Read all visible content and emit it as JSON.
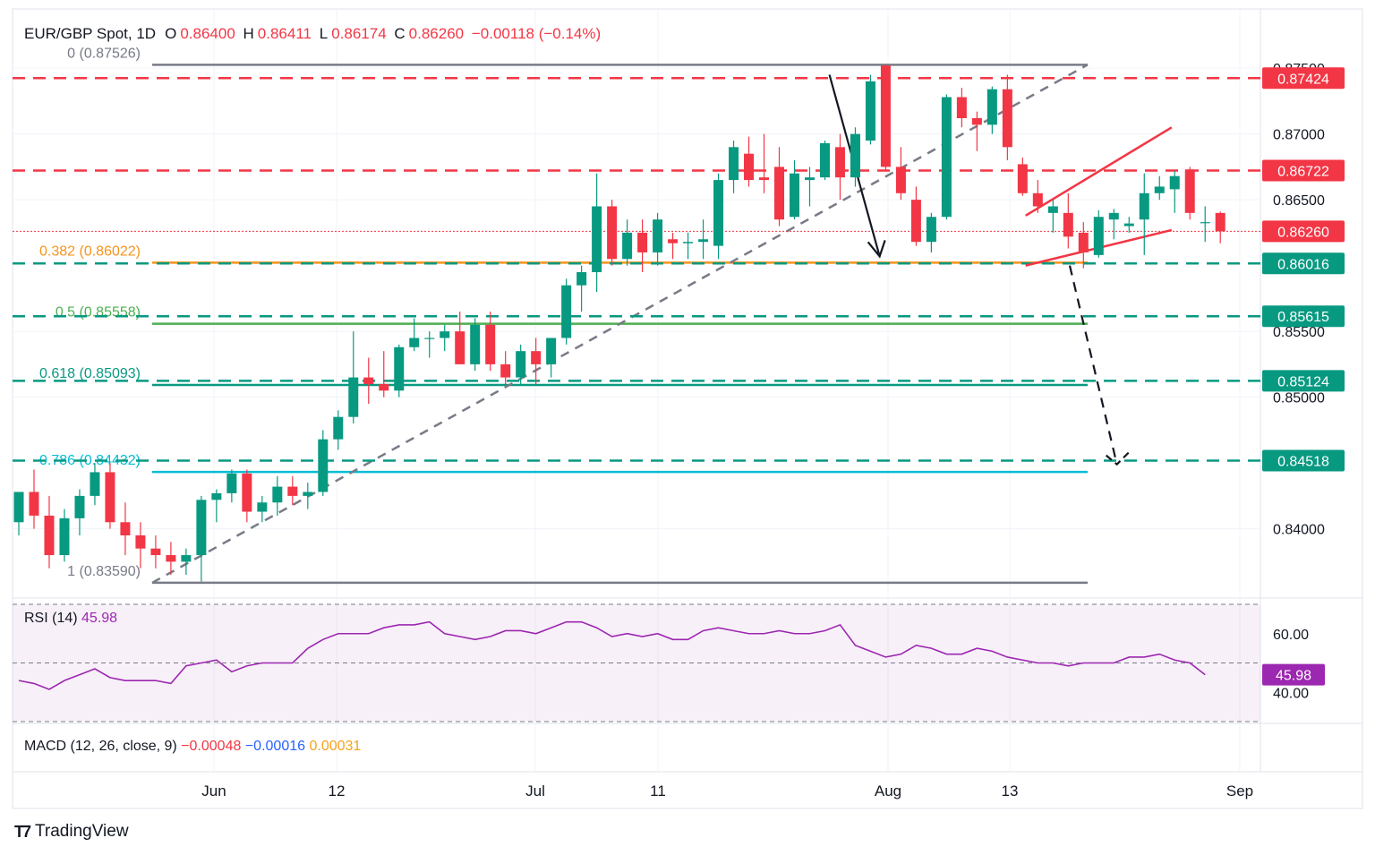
{
  "header": {
    "symbol": "EUR/GBP Spot, 1D",
    "open_label": "O",
    "open": "0.86400",
    "high_label": "H",
    "high": "0.86411",
    "low_label": "L",
    "low": "0.86174",
    "close_label": "C",
    "close": "0.86260",
    "change": "−0.00118 (−0.14%)"
  },
  "rsi": {
    "title": "RSI (14)",
    "value": "45.98",
    "ticks": [
      "60.00",
      "40.00"
    ],
    "tag": "45.98"
  },
  "macd": {
    "title": "MACD (12, 26, close, 9)",
    "v1": "−0.00048",
    "v2": "−0.00016",
    "v3": "0.00031"
  },
  "branding": {
    "name": "TradingView",
    "logo_icon": "tradingview-logo-icon"
  },
  "colors": {
    "up": "#089981",
    "down": "#f23645",
    "fib_orange": "#f7931a",
    "fib_green": "#4caf50",
    "fib_teal": "#089981",
    "fib_cyan": "#00bcd4",
    "rsi": "#9c27b0"
  },
  "chart_data": {
    "type": "candlestick",
    "xlabel": "",
    "ylabel": "",
    "x_ticks": [
      "Jun",
      "12",
      "Jul",
      "11",
      "Aug",
      "13",
      "Sep"
    ],
    "y_ticks": [
      "0.87500",
      "0.87000",
      "0.86500",
      "0.85500",
      "0.85000",
      "0.84000"
    ],
    "ylim": [
      0.833,
      0.8765
    ],
    "grid": true,
    "candles": [
      {
        "o": 0.8405,
        "h": 0.8425,
        "l": 0.8395,
        "c": 0.8428
      },
      {
        "o": 0.8428,
        "h": 0.8445,
        "l": 0.84,
        "c": 0.841
      },
      {
        "o": 0.841,
        "h": 0.8425,
        "l": 0.837,
        "c": 0.838
      },
      {
        "o": 0.838,
        "h": 0.8415,
        "l": 0.8375,
        "c": 0.8408
      },
      {
        "o": 0.8408,
        "h": 0.843,
        "l": 0.8395,
        "c": 0.8425
      },
      {
        "o": 0.8425,
        "h": 0.845,
        "l": 0.8418,
        "c": 0.8443
      },
      {
        "o": 0.8443,
        "h": 0.845,
        "l": 0.84,
        "c": 0.8405
      },
      {
        "o": 0.8405,
        "h": 0.842,
        "l": 0.838,
        "c": 0.8395
      },
      {
        "o": 0.8395,
        "h": 0.8405,
        "l": 0.837,
        "c": 0.8385
      },
      {
        "o": 0.8385,
        "h": 0.8395,
        "l": 0.837,
        "c": 0.838
      },
      {
        "o": 0.838,
        "h": 0.839,
        "l": 0.8365,
        "c": 0.8375
      },
      {
        "o": 0.8375,
        "h": 0.8385,
        "l": 0.8365,
        "c": 0.838
      },
      {
        "o": 0.838,
        "h": 0.8425,
        "l": 0.836,
        "c": 0.8422
      },
      {
        "o": 0.8422,
        "h": 0.843,
        "l": 0.8405,
        "c": 0.8427
      },
      {
        "o": 0.8427,
        "h": 0.8445,
        "l": 0.842,
        "c": 0.8442
      },
      {
        "o": 0.8442,
        "h": 0.8445,
        "l": 0.8405,
        "c": 0.8413
      },
      {
        "o": 0.8413,
        "h": 0.8425,
        "l": 0.8405,
        "c": 0.842
      },
      {
        "o": 0.842,
        "h": 0.844,
        "l": 0.841,
        "c": 0.8432
      },
      {
        "o": 0.8432,
        "h": 0.844,
        "l": 0.8418,
        "c": 0.8425
      },
      {
        "o": 0.8425,
        "h": 0.8435,
        "l": 0.8415,
        "c": 0.8428
      },
      {
        "o": 0.8428,
        "h": 0.8475,
        "l": 0.8425,
        "c": 0.8468
      },
      {
        "o": 0.8468,
        "h": 0.849,
        "l": 0.846,
        "c": 0.8485
      },
      {
        "o": 0.8485,
        "h": 0.855,
        "l": 0.848,
        "c": 0.8515
      },
      {
        "o": 0.8515,
        "h": 0.853,
        "l": 0.8495,
        "c": 0.851
      },
      {
        "o": 0.851,
        "h": 0.8535,
        "l": 0.85,
        "c": 0.8505
      },
      {
        "o": 0.8505,
        "h": 0.854,
        "l": 0.85,
        "c": 0.8538
      },
      {
        "o": 0.8538,
        "h": 0.856,
        "l": 0.8535,
        "c": 0.8545
      },
      {
        "o": 0.8545,
        "h": 0.855,
        "l": 0.853,
        "c": 0.8545
      },
      {
        "o": 0.8545,
        "h": 0.8555,
        "l": 0.8535,
        "c": 0.855
      },
      {
        "o": 0.855,
        "h": 0.8565,
        "l": 0.8525,
        "c": 0.8525
      },
      {
        "o": 0.8525,
        "h": 0.856,
        "l": 0.852,
        "c": 0.8555
      },
      {
        "o": 0.8555,
        "h": 0.8565,
        "l": 0.852,
        "c": 0.8525
      },
      {
        "o": 0.8525,
        "h": 0.8535,
        "l": 0.851,
        "c": 0.8515
      },
      {
        "o": 0.8515,
        "h": 0.854,
        "l": 0.851,
        "c": 0.8535
      },
      {
        "o": 0.8535,
        "h": 0.8545,
        "l": 0.851,
        "c": 0.8525
      },
      {
        "o": 0.8525,
        "h": 0.8545,
        "l": 0.8515,
        "c": 0.8545
      },
      {
        "o": 0.8545,
        "h": 0.859,
        "l": 0.854,
        "c": 0.8585
      },
      {
        "o": 0.8585,
        "h": 0.86,
        "l": 0.8565,
        "c": 0.8595
      },
      {
        "o": 0.8595,
        "h": 0.867,
        "l": 0.858,
        "c": 0.8645
      },
      {
        "o": 0.8645,
        "h": 0.865,
        "l": 0.86,
        "c": 0.8605
      },
      {
        "o": 0.8605,
        "h": 0.8635,
        "l": 0.86,
        "c": 0.8625
      },
      {
        "o": 0.8625,
        "h": 0.8635,
        "l": 0.8595,
        "c": 0.861
      },
      {
        "o": 0.861,
        "h": 0.864,
        "l": 0.86,
        "c": 0.8635
      },
      {
        "o": 0.862,
        "h": 0.8625,
        "l": 0.8605,
        "c": 0.8617
      },
      {
        "o": 0.8617,
        "h": 0.8625,
        "l": 0.8605,
        "c": 0.8618
      },
      {
        "o": 0.8618,
        "h": 0.8635,
        "l": 0.8605,
        "c": 0.862
      },
      {
        "o": 0.8615,
        "h": 0.867,
        "l": 0.8605,
        "c": 0.8665
      },
      {
        "o": 0.8665,
        "h": 0.8695,
        "l": 0.8655,
        "c": 0.869
      },
      {
        "o": 0.8685,
        "h": 0.8698,
        "l": 0.866,
        "c": 0.8665
      },
      {
        "o": 0.8667,
        "h": 0.87,
        "l": 0.8655,
        "c": 0.8665
      },
      {
        "o": 0.8675,
        "h": 0.869,
        "l": 0.863,
        "c": 0.8635
      },
      {
        "o": 0.8637,
        "h": 0.868,
        "l": 0.8635,
        "c": 0.867
      },
      {
        "o": 0.8665,
        "h": 0.8675,
        "l": 0.8645,
        "c": 0.8667
      },
      {
        "o": 0.8667,
        "h": 0.8695,
        "l": 0.8665,
        "c": 0.8693
      },
      {
        "o": 0.869,
        "h": 0.87,
        "l": 0.865,
        "c": 0.8667
      },
      {
        "o": 0.8667,
        "h": 0.8705,
        "l": 0.866,
        "c": 0.87
      },
      {
        "o": 0.8695,
        "h": 0.8745,
        "l": 0.8692,
        "c": 0.874
      },
      {
        "o": 0.8752,
        "h": 0.8753,
        "l": 0.8672,
        "c": 0.8675
      },
      {
        "o": 0.8675,
        "h": 0.869,
        "l": 0.865,
        "c": 0.8655
      },
      {
        "o": 0.865,
        "h": 0.866,
        "l": 0.8615,
        "c": 0.8618
      },
      {
        "o": 0.8618,
        "h": 0.864,
        "l": 0.861,
        "c": 0.8637
      },
      {
        "o": 0.8637,
        "h": 0.873,
        "l": 0.8635,
        "c": 0.8728
      },
      {
        "o": 0.8728,
        "h": 0.8735,
        "l": 0.8705,
        "c": 0.8712
      },
      {
        "o": 0.8712,
        "h": 0.8717,
        "l": 0.8687,
        "c": 0.8707
      },
      {
        "o": 0.8707,
        "h": 0.8736,
        "l": 0.87,
        "c": 0.8734
      },
      {
        "o": 0.8734,
        "h": 0.8745,
        "l": 0.868,
        "c": 0.869
      },
      {
        "o": 0.8677,
        "h": 0.8682,
        "l": 0.8653,
        "c": 0.8655
      },
      {
        "o": 0.8655,
        "h": 0.8665,
        "l": 0.864,
        "c": 0.8645
      },
      {
        "o": 0.864,
        "h": 0.865,
        "l": 0.8625,
        "c": 0.8645
      },
      {
        "o": 0.864,
        "h": 0.8655,
        "l": 0.8613,
        "c": 0.8622
      },
      {
        "o": 0.8625,
        "h": 0.8633,
        "l": 0.8598,
        "c": 0.861
      },
      {
        "o": 0.8608,
        "h": 0.8642,
        "l": 0.8606,
        "c": 0.8637
      },
      {
        "o": 0.8635,
        "h": 0.8643,
        "l": 0.862,
        "c": 0.864
      },
      {
        "o": 0.863,
        "h": 0.8637,
        "l": 0.8625,
        "c": 0.8632
      },
      {
        "o": 0.8635,
        "h": 0.867,
        "l": 0.8608,
        "c": 0.8655
      },
      {
        "o": 0.8655,
        "h": 0.8668,
        "l": 0.865,
        "c": 0.866
      },
      {
        "o": 0.8658,
        "h": 0.8672,
        "l": 0.864,
        "c": 0.8668
      },
      {
        "o": 0.8673,
        "h": 0.8675,
        "l": 0.8635,
        "c": 0.864
      },
      {
        "o": 0.8633,
        "h": 0.8645,
        "l": 0.8618,
        "c": 0.8633
      },
      {
        "o": 0.864,
        "h": 0.8641,
        "l": 0.8617,
        "c": 0.8626
      }
    ],
    "fib_levels": [
      {
        "label": "0 (0.87526)",
        "value": 0.87526,
        "color": "#787b86"
      },
      {
        "label": "0.382 (0.86022)",
        "value": 0.86022,
        "color": "#f7931a"
      },
      {
        "label": "0.5 (0.85558)",
        "value": 0.85558,
        "color": "#4caf50"
      },
      {
        "label": "0.618 (0.85093)",
        "value": 0.85093,
        "color": "#089981"
      },
      {
        "label": "0.786 (0.84432)",
        "value": 0.84432,
        "color": "#00bcd4"
      },
      {
        "label": "1 (0.83590)",
        "value": 0.8359,
        "color": "#787b86"
      }
    ],
    "horizontal_levels": [
      {
        "label": "0.87424",
        "value": 0.87424,
        "color": "#f23645"
      },
      {
        "label": "0.86722",
        "value": 0.86722,
        "color": "#f23645"
      },
      {
        "label": "0.86016",
        "value": 0.86016,
        "color": "#089981"
      },
      {
        "label": "0.85615",
        "value": 0.85615,
        "color": "#089981"
      },
      {
        "label": "0.85124",
        "value": 0.85124,
        "color": "#089981"
      },
      {
        "label": "0.84518",
        "value": 0.84518,
        "color": "#089981"
      }
    ],
    "last_price": {
      "label": "0.86260",
      "value": 0.8626
    },
    "rsi_series": [
      44,
      43,
      41,
      44,
      46,
      48,
      45,
      44,
      44,
      44,
      43,
      49,
      50,
      51,
      47,
      49,
      50,
      50,
      50,
      55,
      58,
      60,
      60,
      60,
      62,
      63,
      63,
      64,
      60,
      59,
      58,
      59,
      61,
      61,
      60,
      62,
      64,
      64,
      62,
      59,
      60,
      59,
      60,
      58,
      58,
      61,
      62,
      61,
      60,
      60,
      61,
      60,
      60,
      61,
      63,
      56,
      54,
      52,
      53,
      56,
      55,
      53,
      53,
      55,
      54,
      52,
      51,
      50,
      50,
      49,
      50,
      50,
      50,
      52,
      52,
      53,
      51,
      50,
      46
    ],
    "rsi_ylim": [
      30,
      70
    ]
  }
}
